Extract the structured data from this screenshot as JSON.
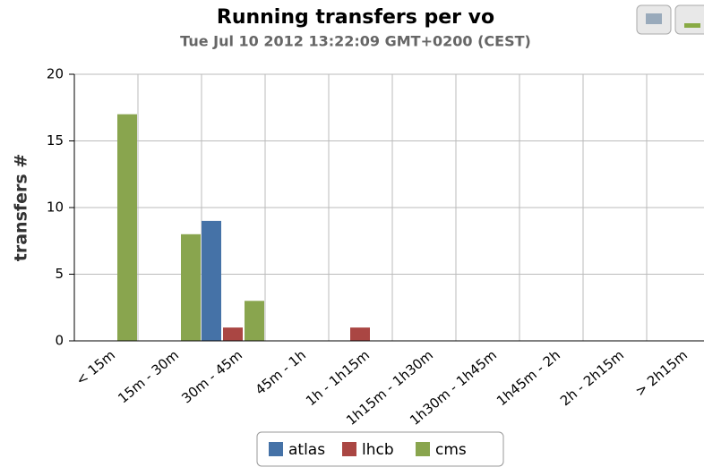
{
  "chart_data": {
    "type": "bar",
    "title": "Running transfers per vo",
    "subtitle": "Tue Jul 10 2012 13:22:09 GMT+0200 (CEST)",
    "y_label": "transfers #",
    "categories": [
      "< 15m",
      "15m - 30m",
      "30m - 45m",
      "45m - 1h",
      "1h - 1h15m",
      "1h15m - 1h30m",
      "1h30m - 1h45m",
      "1h45m - 2h",
      "2h - 2h15m",
      "> 2h15m"
    ],
    "series": [
      {
        "name": "atlas",
        "color": "#4572a7",
        "values": [
          0,
          0,
          9,
          0,
          0,
          0,
          0,
          0,
          0,
          0
        ]
      },
      {
        "name": "lhcb",
        "color": "#aa4643",
        "values": [
          0,
          0,
          1,
          0,
          1,
          0,
          0,
          0,
          0,
          0
        ]
      },
      {
        "name": "cms",
        "color": "#89a54e",
        "values": [
          17,
          8,
          3,
          0,
          0,
          0,
          0,
          0,
          0,
          0
        ]
      }
    ],
    "ylim": [
      0,
      20
    ],
    "yticks": [
      0,
      5,
      10,
      15,
      20
    ],
    "grid": true
  }
}
